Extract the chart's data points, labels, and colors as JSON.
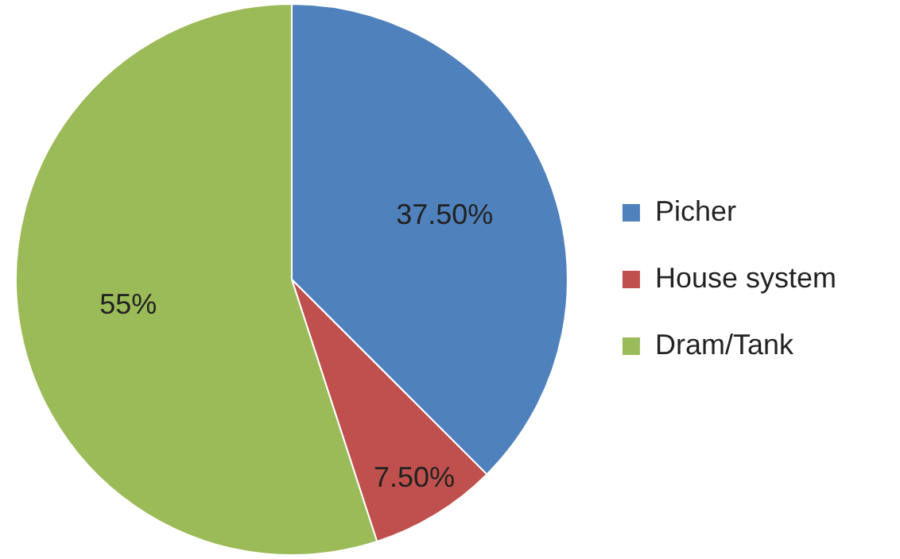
{
  "chart_data": {
    "type": "pie",
    "categories": [
      "Picher",
      "House system",
      "Dram/Tank"
    ],
    "values": [
      37.5,
      7.5,
      55
    ],
    "colors": [
      "#4f81bd",
      "#c0504d",
      "#9bbb59"
    ],
    "value_labels": [
      "37.50%",
      "7.50%",
      "55%"
    ],
    "legend": "right"
  }
}
